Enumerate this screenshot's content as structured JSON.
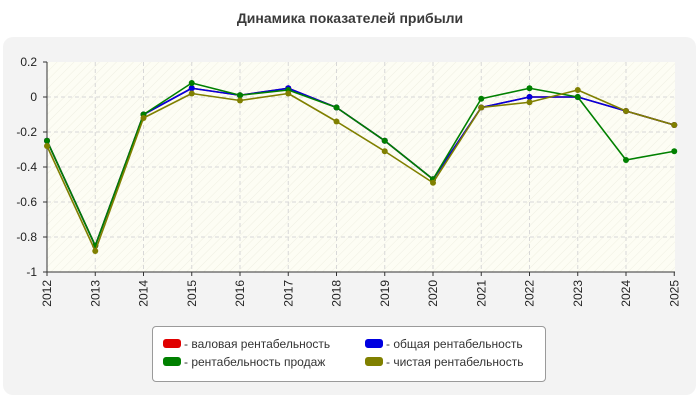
{
  "chart_data": {
    "type": "line",
    "title": "Динамика показателей прибыли",
    "x": [
      "2012",
      "2013",
      "2014",
      "2015",
      "2016",
      "2017",
      "2018",
      "2019",
      "2020",
      "2021",
      "2022",
      "2023",
      "2024",
      "2025"
    ],
    "ylim": [
      -1,
      0.2
    ],
    "yticks": [
      "0.2",
      "0",
      "-0.2",
      "-0.4",
      "-0.6",
      "-0.8",
      "-1"
    ],
    "grid": true,
    "legend_position": "bottom",
    "series": [
      {
        "name": "- валовая рентабельность",
        "color": "#e00000",
        "values": [
          -0.25,
          -0.85,
          -0.1,
          0.05,
          0.01,
          0.05,
          -0.06,
          -0.25,
          -0.47,
          -0.06,
          0.0,
          0.0,
          -0.08,
          -0.16
        ]
      },
      {
        "name": "- общая рентабельность",
        "color": "#0000e0",
        "values": [
          -0.25,
          -0.85,
          -0.1,
          0.05,
          0.01,
          0.05,
          -0.06,
          -0.25,
          -0.47,
          -0.06,
          0.0,
          0.0,
          -0.08,
          -0.16
        ]
      },
      {
        "name": "- рентабельность продаж",
        "color": "#008000",
        "values": [
          -0.25,
          -0.85,
          -0.1,
          0.08,
          0.01,
          0.04,
          -0.06,
          -0.25,
          -0.47,
          -0.01,
          0.05,
          0.0,
          -0.36,
          -0.31
        ]
      },
      {
        "name": "- чистая рентабельность",
        "color": "#808000",
        "values": [
          -0.28,
          -0.88,
          -0.12,
          0.02,
          -0.02,
          0.02,
          -0.14,
          -0.31,
          -0.49,
          -0.06,
          -0.03,
          0.04,
          -0.08,
          -0.16
        ]
      }
    ]
  }
}
